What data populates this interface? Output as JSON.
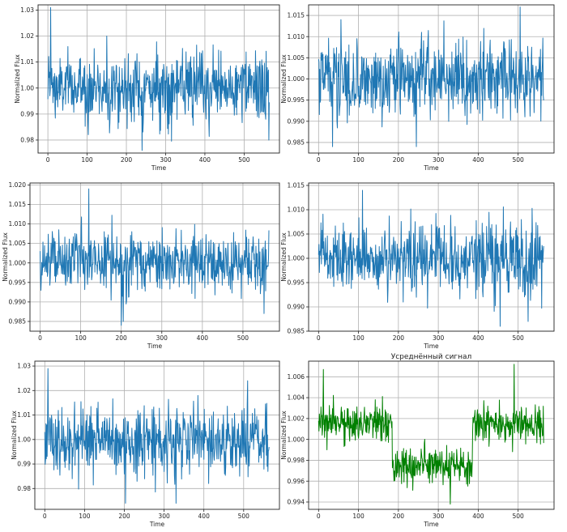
{
  "colors": {
    "series_blue": "#1f77b4",
    "series_green": "#008000",
    "grid": "#b0b0b0",
    "frame": "#222222"
  },
  "chart_data": [
    {
      "type": "line",
      "title": "",
      "xlabel": "Time",
      "ylabel": "Normalized Flux",
      "xlim": [
        -25,
        590
      ],
      "ylim": [
        0.975,
        1.032
      ],
      "xticks": [
        0,
        100,
        200,
        300,
        400,
        500
      ],
      "yticks": [
        0.98,
        0.99,
        1.0,
        1.01,
        1.02,
        1.03
      ],
      "ytick_labels": [
        "0.98",
        "0.99",
        "1.00",
        "1.01",
        "1.02",
        "1.03"
      ],
      "grid": true,
      "color": "series_blue",
      "n_points": 565,
      "x_range": [
        0,
        564
      ],
      "baseline": 1.0,
      "noise_std": 0.0065,
      "flux_min": 0.976,
      "flux_max": 1.031,
      "features": [
        {
          "x": 7,
          "y": 1.031
        },
        {
          "x": 150,
          "y": 1.02
        },
        {
          "x": 240,
          "y": 0.976
        },
        {
          "x": 563,
          "y": 0.98
        }
      ]
    },
    {
      "type": "line",
      "title": "",
      "xlabel": "Time",
      "ylabel": "Normalized Flux",
      "xlim": [
        -25,
        590
      ],
      "ylim": [
        0.9825,
        1.0175
      ],
      "xticks": [
        0,
        100,
        200,
        300,
        400,
        500
      ],
      "yticks": [
        0.985,
        0.99,
        0.995,
        1.0,
        1.005,
        1.01,
        1.015
      ],
      "ytick_labels": [
        "0.985",
        "0.990",
        "0.995",
        "1.000",
        "1.005",
        "1.010",
        "1.015"
      ],
      "grid": true,
      "color": "series_blue",
      "n_points": 565,
      "x_range": [
        0,
        564
      ],
      "baseline": 1.0,
      "noise_std": 0.0045,
      "flux_min": 0.984,
      "flux_max": 1.017,
      "features": [
        {
          "x": 35,
          "y": 0.984
        },
        {
          "x": 245,
          "y": 0.984
        },
        {
          "x": 505,
          "y": 1.017
        }
      ]
    },
    {
      "type": "line",
      "title": "",
      "xlabel": "Time",
      "ylabel": "Normalized Flux",
      "xlim": [
        -25,
        590
      ],
      "ylim": [
        0.9825,
        1.0205
      ],
      "xticks": [
        0,
        100,
        200,
        300,
        400,
        500
      ],
      "yticks": [
        0.985,
        0.99,
        0.995,
        1.0,
        1.005,
        1.01,
        1.015,
        1.02
      ],
      "ytick_labels": [
        "0.985",
        "0.990",
        "0.995",
        "1.000",
        "1.005",
        "1.010",
        "1.015",
        "1.020"
      ],
      "grid": true,
      "color": "series_blue",
      "n_points": 565,
      "x_range": [
        0,
        564
      ],
      "baseline": 1.0,
      "noise_std": 0.004,
      "flux_min": 0.984,
      "flux_max": 1.019,
      "features": [
        {
          "x": 120,
          "y": 1.019
        },
        {
          "x": 200,
          "y": 0.984
        },
        {
          "x": 205,
          "y": 0.985
        }
      ]
    },
    {
      "type": "line",
      "title": "",
      "xlabel": "Time",
      "ylabel": "Normalized Flux",
      "xlim": [
        -25,
        590
      ],
      "ylim": [
        0.985,
        1.0155
      ],
      "xticks": [
        0,
        100,
        200,
        300,
        400,
        500
      ],
      "yticks": [
        0.985,
        0.99,
        0.995,
        1.0,
        1.005,
        1.01,
        1.015
      ],
      "ytick_labels": [
        "0.985",
        "0.990",
        "0.995",
        "1.000",
        "1.005",
        "1.010",
        "1.015"
      ],
      "grid": true,
      "color": "series_blue",
      "n_points": 565,
      "x_range": [
        0,
        564
      ],
      "baseline": 1.0,
      "noise_std": 0.0035,
      "flux_min": 0.986,
      "flux_max": 1.014,
      "features": [
        {
          "x": 110,
          "y": 1.014
        },
        {
          "x": 455,
          "y": 0.986
        },
        {
          "x": 525,
          "y": 0.987
        }
      ]
    },
    {
      "type": "line",
      "title": "",
      "xlabel": "Time",
      "ylabel": "Normalized Flux",
      "xlim": [
        -25,
        590
      ],
      "ylim": [
        0.9715,
        1.032
      ],
      "xticks": [
        0,
        100,
        200,
        300,
        400,
        500
      ],
      "yticks": [
        0.98,
        0.99,
        1.0,
        1.01,
        1.02,
        1.03
      ],
      "ytick_labels": [
        "0.98",
        "0.99",
        "1.00",
        "1.01",
        "1.02",
        "1.03"
      ],
      "grid": true,
      "color": "series_blue",
      "n_points": 565,
      "x_range": [
        0,
        564
      ],
      "baseline": 1.0,
      "noise_std": 0.0075,
      "flux_min": 0.974,
      "flux_max": 1.029,
      "features": [
        {
          "x": 8,
          "y": 1.029
        },
        {
          "x": 330,
          "y": 0.974
        },
        {
          "x": 510,
          "y": 1.024
        }
      ]
    },
    {
      "type": "line",
      "title": "Усреднённый сигнал",
      "xlabel": "Time",
      "ylabel": "Normalized Flux",
      "xlim": [
        -25,
        590
      ],
      "ylim": [
        0.9933,
        1.0075
      ],
      "xticks": [
        0,
        100,
        200,
        300,
        400,
        500
      ],
      "yticks": [
        0.994,
        0.996,
        0.998,
        1.0,
        1.002,
        1.004,
        1.006
      ],
      "ytick_labels": [
        "0.994",
        "0.996",
        "0.998",
        "1.000",
        "1.002",
        "1.004",
        "1.006"
      ],
      "grid": true,
      "color": "series_green",
      "n_points": 565,
      "x_range": [
        0,
        564
      ],
      "baseline": 1.0,
      "noise_std": 0.0009,
      "flux_min": 0.9938,
      "flux_max": 1.0072,
      "dip": {
        "start": 185,
        "end": 385,
        "level": 0.9976,
        "high_level": 1.0015
      },
      "features": [
        {
          "x": 12,
          "y": 1.0067
        },
        {
          "x": 330,
          "y": 0.9938
        },
        {
          "x": 490,
          "y": 1.0072
        }
      ]
    }
  ]
}
